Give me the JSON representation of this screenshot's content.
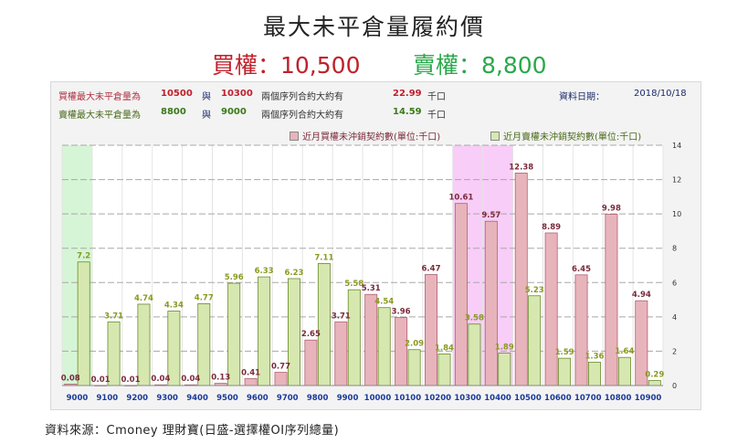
{
  "title": "最大未平倉量履約價",
  "call_summary": "買權：10,500",
  "put_summary": "賣權：8,800",
  "info": {
    "call_label": "買權最大未平倉量為",
    "call_strike_a": "10500",
    "call_and": "與",
    "call_strike_b": "10300",
    "call_desc": "兩個序列合約大約有",
    "call_value": "22.99",
    "call_unit": "千口",
    "put_label": "賣權最大未平倉量為",
    "put_strike_a": "8800",
    "put_and": "與",
    "put_strike_b": "9000",
    "put_desc": "兩個序列合約大約有",
    "put_value": "14.59",
    "put_unit": "千口",
    "date_label": "資料日期：",
    "date_value": "2018/10/18"
  },
  "source": "資料來源：Cmoney 理財寶(日盛-選擇權OI序列總量)",
  "colors": {
    "call_bar": "#e8b4bc",
    "call_bar_border": "#b06070",
    "put_bar": "#d6e8b0",
    "put_bar_border": "#6a8a2a",
    "call_label": "#7a2a3a",
    "put_label": "#8a9a20",
    "highlight_green": "#d6f5d6",
    "highlight_pink": "#f8cdf8"
  },
  "chart_data": {
    "type": "bar",
    "categories": [
      "9000",
      "9100",
      "9200",
      "9300",
      "9400",
      "9500",
      "9600",
      "9700",
      "9800",
      "9900",
      "10000",
      "10100",
      "10200",
      "10300",
      "10400",
      "10500",
      "10600",
      "10700",
      "10800",
      "10900"
    ],
    "series": [
      {
        "name": "近月買權未沖銷契約數(單位:千口)",
        "values": [
          0.08,
          0.01,
          0.01,
          0.04,
          0.04,
          0.13,
          0.41,
          0.77,
          2.65,
          3.71,
          5.31,
          3.96,
          6.47,
          10.61,
          9.57,
          12.38,
          8.89,
          6.45,
          9.98,
          4.94
        ]
      },
      {
        "name": "近月賣權未沖銷契約數(單位:千口)",
        "values": [
          7.2,
          3.71,
          4.74,
          4.34,
          4.77,
          5.96,
          6.33,
          6.23,
          7.11,
          5.58,
          4.54,
          2.09,
          1.84,
          3.58,
          1.89,
          5.23,
          1.59,
          1.36,
          1.64,
          0.29
        ]
      }
    ],
    "yticks": [
      0,
      2,
      4,
      6,
      8,
      10,
      12,
      14
    ],
    "ylim": [
      0,
      14
    ],
    "highlight_green": [
      "9000"
    ],
    "highlight_pink": [
      "10300",
      "10400"
    ],
    "legend_position": "top-right",
    "grid": true
  }
}
